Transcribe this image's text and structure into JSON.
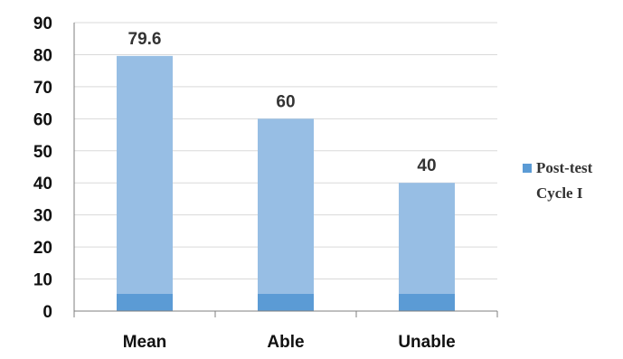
{
  "chart_data": {
    "type": "bar",
    "categories": [
      "Mean",
      "Able",
      "Unable"
    ],
    "series": [
      {
        "name": "Post-test Cycle I",
        "values": [
          79.6,
          60,
          40
        ],
        "data_labels": [
          "79.6",
          "60",
          "40"
        ]
      }
    ],
    "ylim": [
      0,
      90
    ],
    "yticks": [
      "0",
      "10",
      "20",
      "30",
      "40",
      "50",
      "60",
      "70",
      "80",
      "90"
    ],
    "grid": true,
    "legend": {
      "position": "right",
      "lines": [
        "Post-test",
        "Cycle I"
      ]
    },
    "colors": {
      "bar": "#97BEE4",
      "bar_base": "#5B9BD5",
      "legend_swatch": "#5B9BD5",
      "gridline": "#D9D9D9",
      "axis": "#7F7F7F"
    }
  }
}
